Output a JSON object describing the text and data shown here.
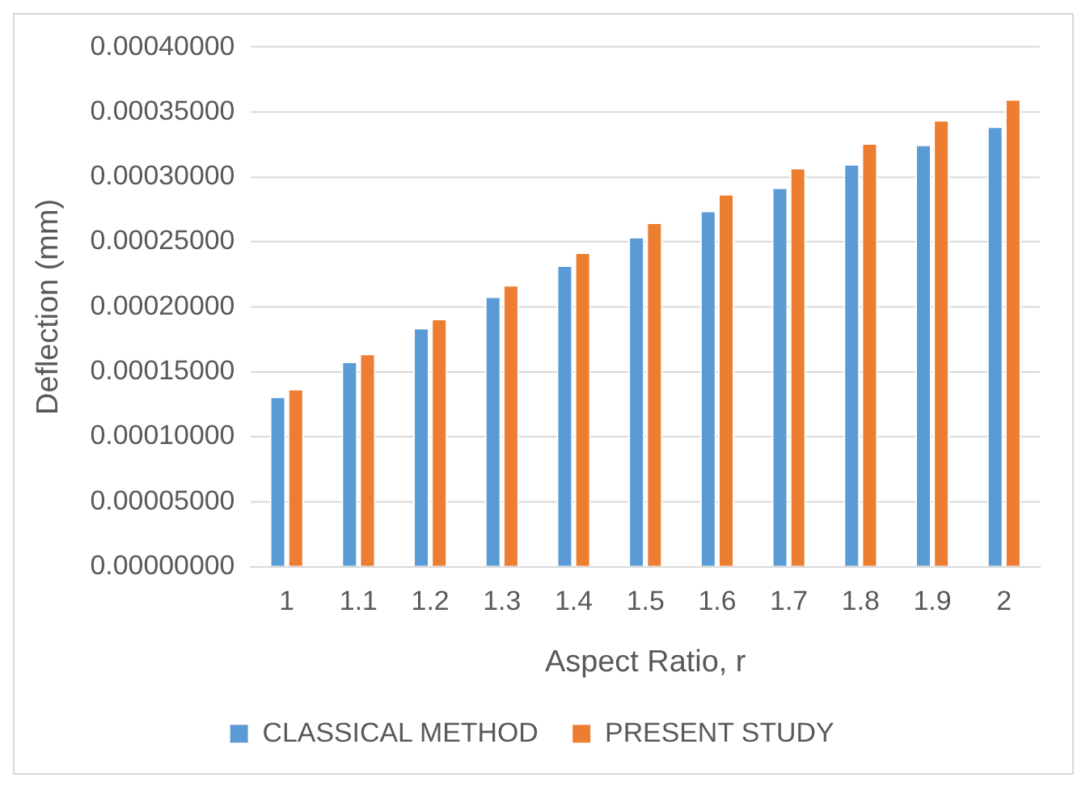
{
  "chart_data": {
    "type": "bar",
    "xlabel": "Aspect Ratio, r",
    "ylabel": "Deflection (mm)",
    "categories": [
      "1",
      "1.1",
      "1.2",
      "1.3",
      "1.4",
      "1.5",
      "1.6",
      "1.7",
      "1.8",
      "1.9",
      "2"
    ],
    "series": [
      {
        "name": "CLASSICAL METHOD",
        "color": "#5b9bd5",
        "values": [
          0.000131,
          0.000158,
          0.000184,
          0.000208,
          0.000232,
          0.000254,
          0.000274,
          0.000292,
          0.00031,
          0.000325,
          0.000339
        ]
      },
      {
        "name": "PRESENT STUDY",
        "color": "#ed7d31",
        "values": [
          0.000137,
          0.000164,
          0.000191,
          0.000217,
          0.000242,
          0.000265,
          0.000287,
          0.000307,
          0.000326,
          0.000344,
          0.00036
        ]
      }
    ],
    "ylim": [
      0,
      0.0004
    ],
    "yticks": [
      {
        "value": 0,
        "label": "0.00000000"
      },
      {
        "value": 5e-05,
        "label": "0.00005000"
      },
      {
        "value": 0.0001,
        "label": "0.00010000"
      },
      {
        "value": 0.00015,
        "label": "0.00015000"
      },
      {
        "value": 0.0002,
        "label": "0.00020000"
      },
      {
        "value": 0.00025,
        "label": "0.00025000"
      },
      {
        "value": 0.0003,
        "label": "0.00030000"
      },
      {
        "value": 0.00035,
        "label": "0.00035000"
      },
      {
        "value": 0.0004,
        "label": "0.00040000"
      }
    ],
    "grid": "y",
    "legend": "bottom"
  }
}
